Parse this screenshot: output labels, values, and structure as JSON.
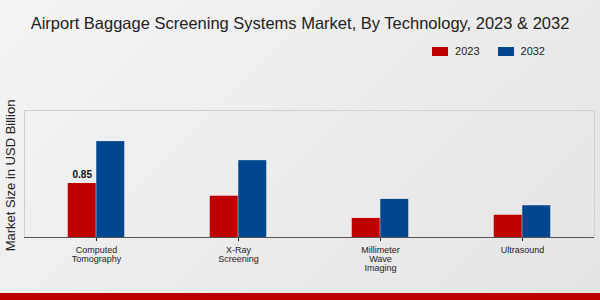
{
  "chart_data": {
    "type": "bar",
    "title": "Airport Baggage Screening Systems Market, By Technology, 2023 & 2032",
    "ylabel": "Market Size in USD Billion",
    "categories": [
      "Computed Tomography",
      "X-Ray Screening",
      "Millimeter Wave Imaging",
      "Ultrasound"
    ],
    "series": [
      {
        "name": "2023",
        "color": "#c00000",
        "values": [
          0.85,
          0.65,
          0.3,
          0.35
        ],
        "value_labels": [
          "0.85",
          null,
          null,
          null
        ]
      },
      {
        "name": "2032",
        "color": "#00478f",
        "values": [
          1.51,
          1.21,
          0.6,
          0.5
        ]
      }
    ],
    "ylim": [
      0,
      2
    ],
    "yticks": [],
    "tick_labels": "x",
    "legend": "top-right",
    "data_labels": true
  }
}
